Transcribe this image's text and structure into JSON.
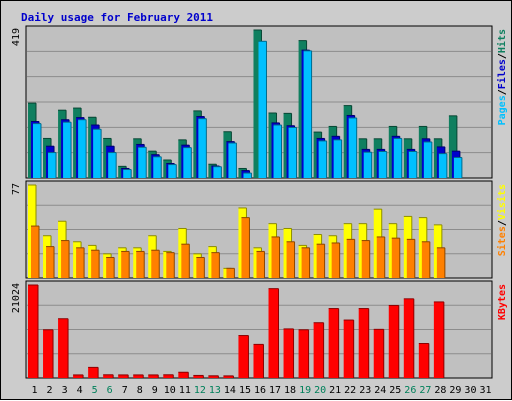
{
  "chart_data": {
    "type": "bar",
    "title": "Daily usage for February 2011",
    "categories": [
      "1",
      "2",
      "3",
      "4",
      "5",
      "6",
      "7",
      "8",
      "9",
      "10",
      "11",
      "12",
      "13",
      "14",
      "15",
      "16",
      "17",
      "18",
      "19",
      "20",
      "21",
      "22",
      "23",
      "24",
      "25",
      "26",
      "27",
      "28",
      "29",
      "30",
      "31"
    ],
    "weekend_days": [
      "5",
      "6",
      "12",
      "13",
      "19",
      "20",
      "26",
      "27"
    ],
    "panels": [
      {
        "id": "hits-files-pages",
        "max_label": "419",
        "ylim": [
          0,
          419
        ],
        "legend": [
          "Pages",
          "/",
          "Files",
          "/",
          "Hits"
        ],
        "series": [
          {
            "name": "Hits",
            "color": "#0f7f5f",
            "values": [
              212,
              112,
              192,
              198,
              172,
              112,
              33,
              111,
              76,
              51,
              108,
              190,
              39,
              131,
              27,
              419,
              184,
              183,
              389,
              130,
              146,
              205,
              111,
              111,
              146,
              111,
              146,
              111,
              176,
              null,
              null
            ]
          },
          {
            "name": "Files",
            "color": "#0000cc",
            "values": [
              160,
              90,
              165,
              171,
              150,
              90,
              27,
              95,
              66,
              41,
              93,
              174,
              34,
              103,
              21,
              null,
              156,
              148,
              362,
              112,
              118,
              177,
              81,
              81,
              118,
              81,
              111,
              88,
              76,
              null,
              null
            ]
          },
          {
            "name": "Pages",
            "color": "#00c0ff",
            "values": [
              154,
              72,
              158,
              165,
              138,
              72,
              24,
              87,
              60,
              38,
              86,
              168,
              32,
              99,
              14,
              387,
              150,
              143,
              360,
              105,
              108,
              170,
              73,
              75,
              112,
              75,
              102,
              69,
              58,
              null,
              null
            ]
          }
        ]
      },
      {
        "id": "visits-sites",
        "max_label": "77",
        "ylim": [
          0,
          77
        ],
        "legend": [
          "Sites",
          "/",
          "Visits"
        ],
        "series": [
          {
            "name": "Visits",
            "color": "#ffff00",
            "values": [
              77,
              35,
              47,
              30,
              27,
              20,
              25,
              25,
              35,
              22,
              41,
              20,
              26,
              8,
              58,
              25,
              45,
              41,
              27,
              36,
              35,
              45,
              45,
              57,
              45,
              51,
              50,
              44,
              null,
              null,
              null
            ]
          },
          {
            "name": "Sites",
            "color": "#ff8000",
            "values": [
              43,
              26,
              31,
              25,
              23,
              17,
              22,
              22,
              23,
              21,
              28,
              17,
              21,
              8,
              50,
              22,
              34,
              30,
              25,
              28,
              29,
              32,
              31,
              34,
              33,
              32,
              30,
              25,
              null,
              null,
              null
            ]
          }
        ]
      },
      {
        "id": "kbytes",
        "max_label": "21024",
        "ylim": [
          0,
          21024
        ],
        "legend": [
          "KBytes"
        ],
        "series": [
          {
            "name": "KBytes",
            "color": "#ff0000",
            "values": [
              21024,
              10900,
              13400,
              700,
              2400,
              730,
              700,
              700,
              700,
              730,
              1300,
              580,
              500,
              480,
              9600,
              7600,
              20200,
              11100,
              10900,
              12500,
              15700,
              13100,
              15700,
              11000,
              16400,
              17900,
              7800,
              17200,
              null,
              null,
              null
            ]
          }
        ]
      }
    ]
  }
}
